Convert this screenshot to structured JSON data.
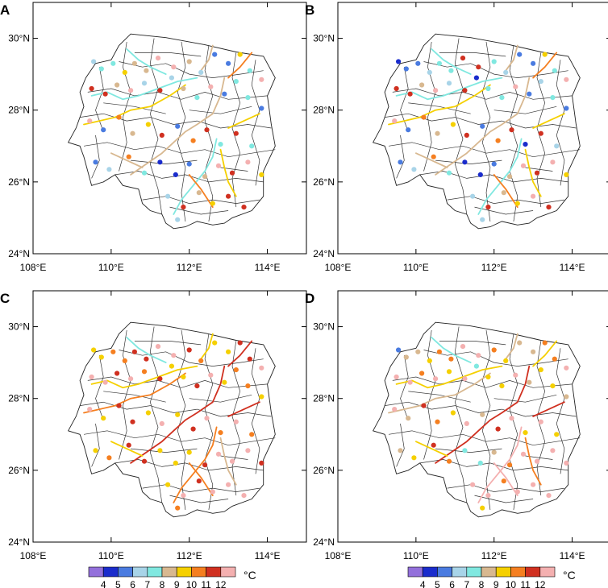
{
  "panels": [
    {
      "letter": "A"
    },
    {
      "letter": "B"
    },
    {
      "letter": "C"
    },
    {
      "letter": "D"
    }
  ],
  "axes": {
    "lon_ticks": [
      {
        "value": 108,
        "label": "108°E"
      },
      {
        "value": 110,
        "label": "110°E"
      },
      {
        "value": 112,
        "label": "112°E"
      },
      {
        "value": 114,
        "label": "114°E"
      }
    ],
    "lat_ticks": [
      {
        "value": 24,
        "label": "24°N"
      },
      {
        "value": 26,
        "label": "26°N"
      },
      {
        "value": 28,
        "label": "28°N"
      },
      {
        "value": 30,
        "label": "30°N"
      }
    ],
    "lon_range": [
      108,
      115
    ],
    "lat_range": [
      24,
      31
    ]
  },
  "colorbar": {
    "labels": [
      "4",
      "5",
      "6",
      "7",
      "8",
      "9",
      "10",
      "11",
      "12"
    ],
    "colors": [
      "#9370db",
      "#1a2ccc",
      "#4a7be0",
      "#a8d4e8",
      "#80e8e0",
      "#d8b890",
      "#f5d000",
      "#f57f20",
      "#d03020",
      "#f4b0b0"
    ],
    "unit": "°C"
  },
  "station_bins": {
    "A": [
      3,
      4,
      4,
      6,
      5,
      5,
      9,
      9,
      5,
      3,
      2,
      2,
      6,
      4,
      9,
      8,
      8,
      5,
      9,
      3,
      8,
      3,
      5,
      4,
      9,
      2,
      4,
      4,
      2,
      9,
      2,
      7,
      5,
      6,
      8,
      2,
      7,
      8,
      4,
      8,
      4,
      2,
      3,
      7,
      4,
      1,
      1,
      2,
      5,
      9,
      8,
      9,
      6,
      3,
      8,
      5,
      6,
      8,
      8,
      3
    ],
    "B": [
      1,
      2,
      2,
      3,
      4,
      4,
      8,
      8,
      4,
      3,
      2,
      2,
      6,
      4,
      9,
      8,
      8,
      5,
      9,
      3,
      8,
      1,
      4,
      4,
      9,
      2,
      3,
      4,
      2,
      9,
      2,
      7,
      5,
      6,
      8,
      2,
      7,
      8,
      1,
      8,
      3,
      2,
      3,
      7,
      4,
      1,
      1,
      2,
      5,
      9,
      8,
      9,
      6,
      3,
      8,
      5,
      6,
      9,
      8,
      3
    ],
    "C": [
      6,
      6,
      7,
      7,
      8,
      8,
      9,
      9,
      8,
      7,
      6,
      6,
      8,
      8,
      9,
      9,
      9,
      8,
      9,
      7,
      8,
      6,
      6,
      8,
      9,
      6,
      7,
      7,
      6,
      9,
      6,
      8,
      8,
      6,
      9,
      6,
      8,
      9,
      7,
      9,
      7,
      6,
      7,
      8,
      8,
      6,
      6,
      6,
      8,
      9,
      9,
      9,
      8,
      6,
      9,
      8,
      9,
      9,
      9,
      7
    ],
    "D": [
      2,
      5,
      5,
      6,
      7,
      7,
      9,
      9,
      7,
      6,
      5,
      5,
      7,
      7,
      9,
      9,
      9,
      7,
      9,
      6,
      9,
      4,
      6,
      6,
      9,
      5,
      6,
      6,
      5,
      9,
      5,
      8,
      7,
      6,
      9,
      5,
      8,
      9,
      6,
      9,
      6,
      5,
      6,
      8,
      7,
      4,
      4,
      5,
      7,
      9,
      9,
      9,
      9,
      9,
      9,
      7,
      9,
      9,
      9,
      6
    ]
  }
}
